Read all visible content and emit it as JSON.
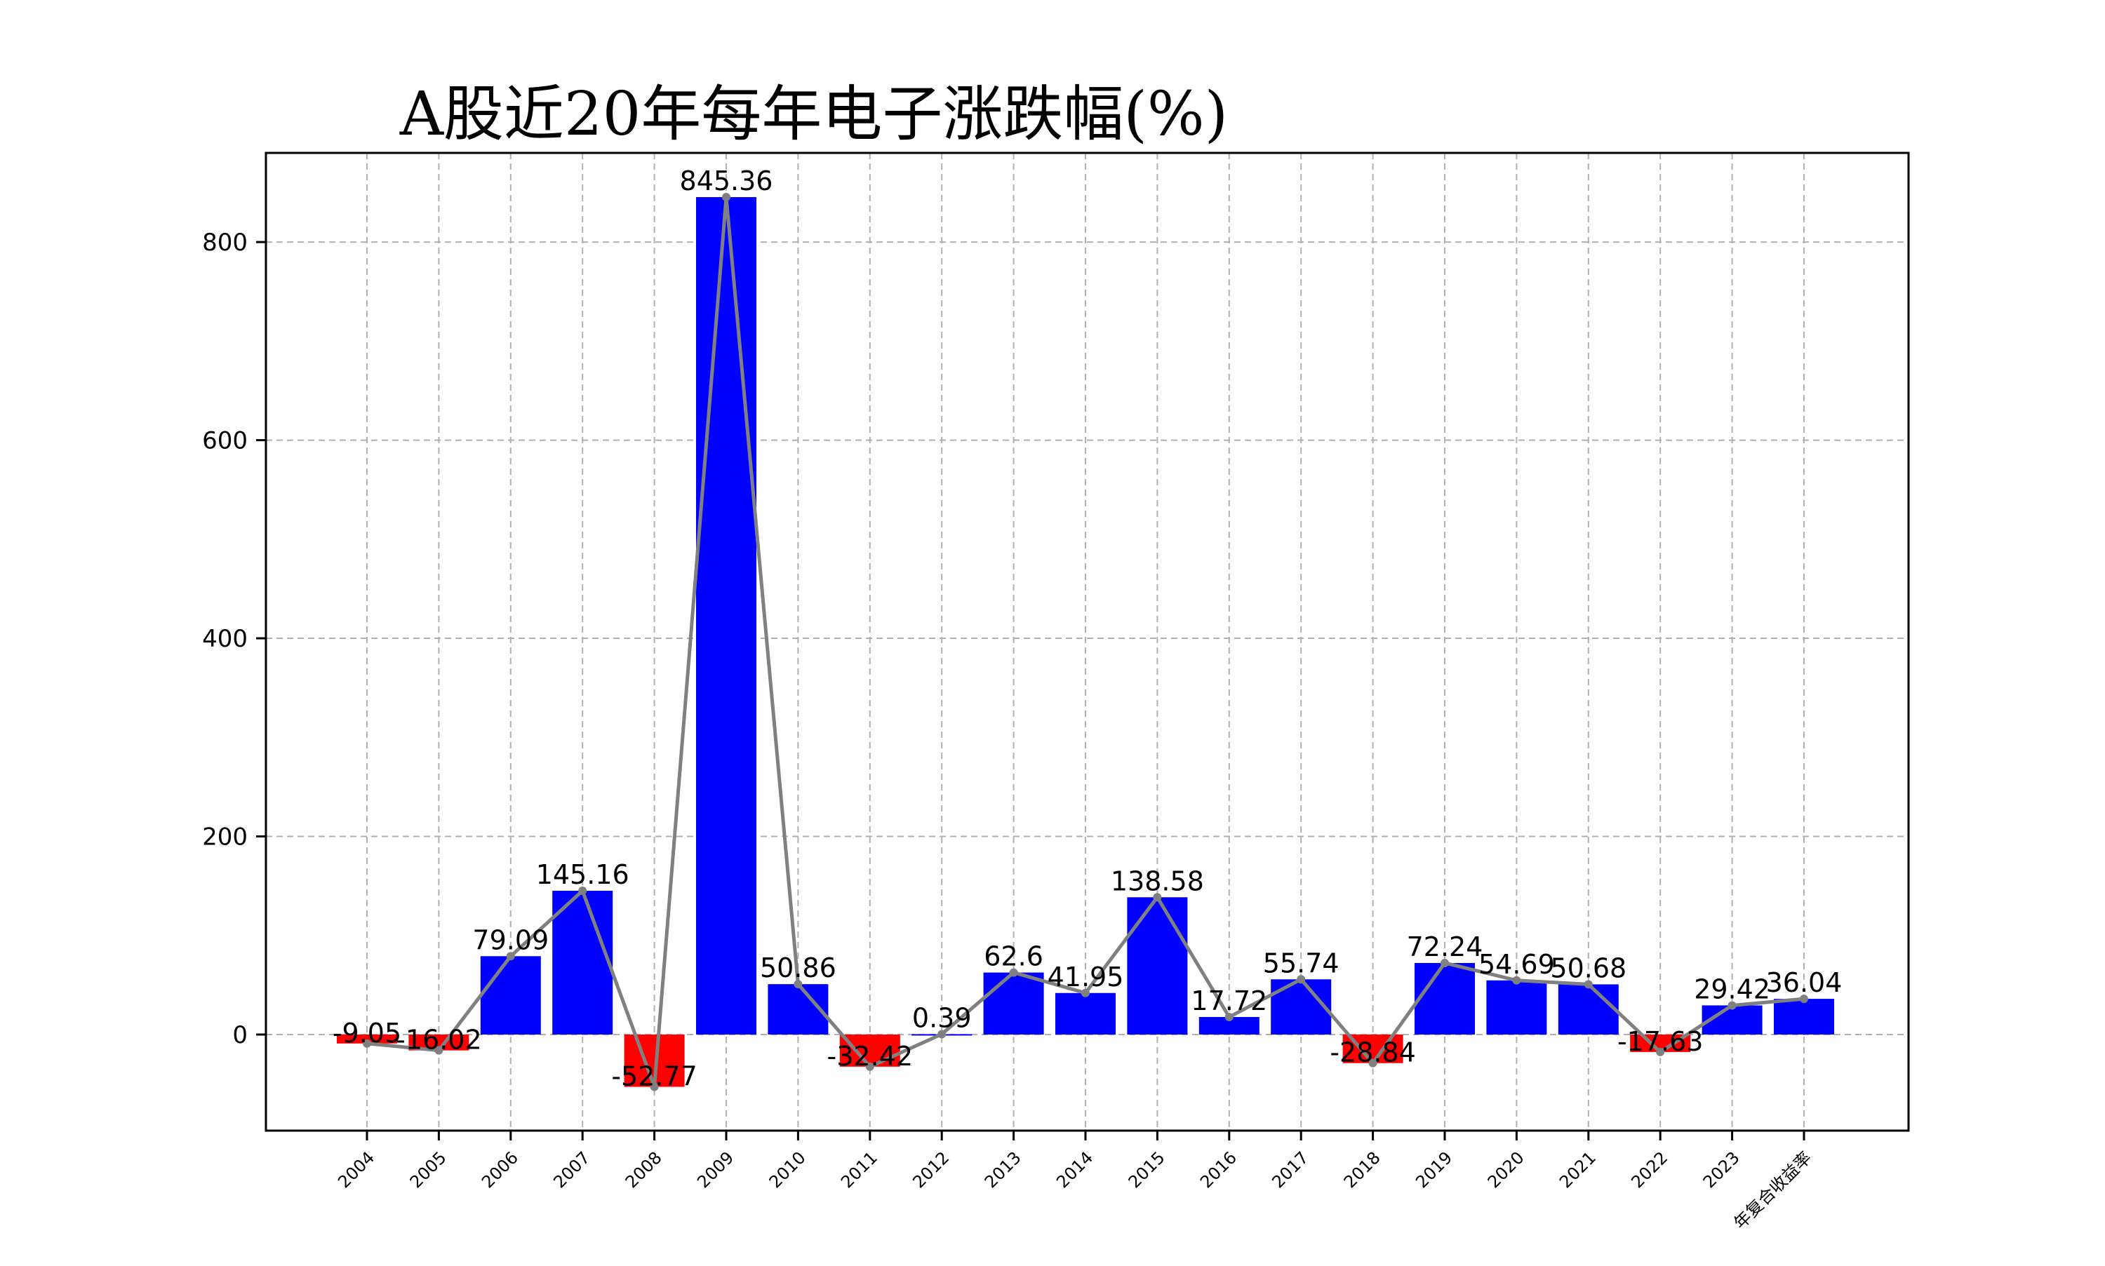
{
  "chart_data": {
    "type": "bar",
    "title": "A股近20年每年电子涨跌幅(%)",
    "xlabel": "",
    "ylabel": "",
    "categories": [
      "2004",
      "2005",
      "2006",
      "2007",
      "2008",
      "2009",
      "2010",
      "2011",
      "2012",
      "2013",
      "2014",
      "2015",
      "2016",
      "2017",
      "2018",
      "2019",
      "2020",
      "2021",
      "2022",
      "2023",
      "年复合收益率"
    ],
    "values": [
      -9.05,
      -16.02,
      79.09,
      145.16,
      -52.77,
      845.36,
      50.86,
      -32.42,
      0.39,
      62.6,
      41.95,
      138.58,
      17.72,
      55.74,
      -28.84,
      72.24,
      54.69,
      50.68,
      -17.63,
      29.42,
      36.04
    ],
    "value_labels": [
      "-9.05",
      "-16.02",
      "79.09",
      "145.16",
      "-52.77",
      "845.36",
      "50.86",
      "-32.42",
      "0.39",
      "62.6",
      "41.95",
      "138.58",
      "17.72",
      "55.74",
      "-28.84",
      "72.24",
      "54.69",
      "50.68",
      "-17.63",
      "29.42",
      "36.04"
    ],
    "overlay_line": {
      "type": "line",
      "values_from": "values",
      "color": "#808080",
      "marker": "dot"
    },
    "ylim": [
      -97,
      890
    ],
    "yticks": [
      0,
      200,
      400,
      600,
      800
    ],
    "ytick_labels": [
      "0",
      "200",
      "400",
      "600",
      "800"
    ],
    "grid": true,
    "grid_style": "dashed",
    "legend": "none",
    "colors": {
      "positive": "#0000ff",
      "negative": "#ff0000",
      "line": "#808080",
      "grid": "#b0b0b0",
      "frame": "#000000"
    }
  }
}
